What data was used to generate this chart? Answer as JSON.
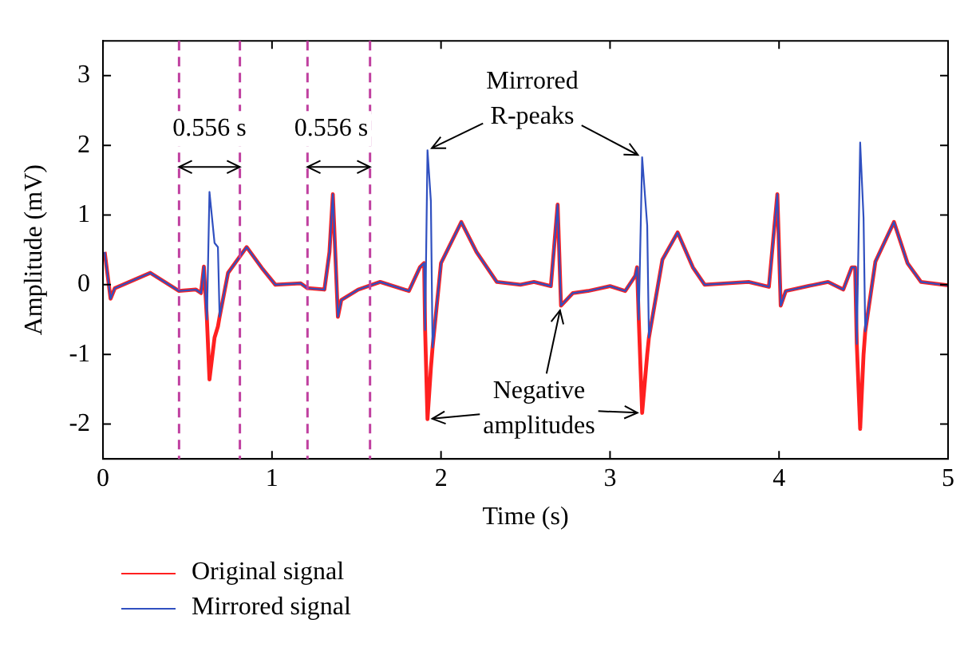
{
  "chart_data": {
    "type": "line",
    "xlabel": "Time (s)",
    "ylabel": "Amplitude (mV)",
    "x": [
      0.01,
      0.045,
      0.07,
      0.28,
      0.45,
      0.55,
      0.58,
      0.597,
      0.615,
      0.63,
      0.66,
      0.68,
      0.69,
      0.74,
      0.85,
      0.94,
      1.02,
      1.17,
      1.21,
      1.31,
      1.34,
      1.36,
      1.39,
      1.41,
      1.51,
      1.64,
      1.81,
      1.875,
      1.9,
      1.906,
      1.92,
      1.94,
      1.95,
      2.0,
      2.12,
      2.21,
      2.33,
      2.47,
      2.55,
      2.65,
      2.69,
      2.71,
      2.78,
      2.87,
      3.0,
      3.09,
      3.15,
      3.16,
      3.17,
      3.19,
      3.22,
      3.23,
      3.31,
      3.4,
      3.49,
      3.56,
      3.82,
      3.94,
      3.99,
      4.01,
      4.04,
      4.17,
      4.29,
      4.38,
      4.43,
      4.45,
      4.46,
      4.48,
      4.5,
      4.51,
      4.57,
      4.68,
      4.76,
      4.84,
      5.0
    ],
    "series": [
      {
        "name": "Original signal",
        "color": "#ff2020",
        "values": [
          0.47,
          -0.2,
          -0.05,
          0.17,
          -0.09,
          -0.07,
          -0.12,
          0.26,
          -0.5,
          -1.36,
          -0.76,
          -0.6,
          -0.46,
          0.17,
          0.54,
          0.24,
          0.0,
          0.02,
          -0.05,
          -0.07,
          0.47,
          1.3,
          -0.46,
          -0.22,
          -0.07,
          0.04,
          -0.09,
          0.25,
          0.31,
          -0.65,
          -1.93,
          -1.2,
          -0.9,
          0.31,
          0.9,
          0.47,
          0.04,
          0.0,
          0.04,
          -0.02,
          1.15,
          -0.3,
          -0.12,
          -0.09,
          -0.02,
          -0.09,
          0.13,
          0.25,
          -0.5,
          -1.84,
          -1.0,
          -0.76,
          0.36,
          0.75,
          0.25,
          0.0,
          0.04,
          -0.03,
          1.3,
          -0.3,
          -0.09,
          -0.02,
          0.04,
          -0.07,
          0.25,
          0.25,
          -0.85,
          -2.07,
          -1.0,
          -0.67,
          0.33,
          0.9,
          0.31,
          0.04,
          -0.01
        ]
      },
      {
        "name": "Mirrored signal",
        "color": "#3050c0",
        "values": [
          0.47,
          -0.2,
          -0.05,
          0.17,
          -0.09,
          -0.07,
          -0.12,
          0.26,
          -0.5,
          1.33,
          0.6,
          0.54,
          -0.46,
          0.17,
          0.54,
          0.24,
          0.0,
          0.02,
          -0.05,
          -0.07,
          0.47,
          1.3,
          -0.46,
          -0.22,
          -0.07,
          0.04,
          -0.09,
          0.25,
          0.31,
          -0.65,
          1.93,
          1.2,
          -0.9,
          0.31,
          0.9,
          0.47,
          0.04,
          0.0,
          0.04,
          -0.02,
          1.15,
          -0.3,
          -0.12,
          -0.09,
          -0.02,
          -0.09,
          0.13,
          0.25,
          -0.5,
          1.83,
          0.85,
          -0.76,
          0.36,
          0.75,
          0.25,
          0.0,
          0.04,
          -0.03,
          1.3,
          -0.3,
          -0.09,
          -0.02,
          0.04,
          -0.07,
          0.25,
          0.25,
          -0.85,
          2.04,
          0.96,
          -0.67,
          0.33,
          0.9,
          0.31,
          0.04,
          -0.01
        ]
      }
    ],
    "xlim": [
      0,
      5
    ],
    "xticks": [
      0,
      1,
      2,
      3,
      4,
      5
    ],
    "ylim": [
      -2.5,
      3.5
    ],
    "yticks": [
      -2,
      -1,
      0,
      1,
      2,
      3
    ],
    "grid": false,
    "legend": "bottom",
    "marker": "none",
    "line_style": "solid",
    "ref_lines": [
      {
        "axis": "x",
        "value": 0.45,
        "color": "#c040a0",
        "line_style": "dashed"
      },
      {
        "axis": "x",
        "value": 0.81,
        "color": "#c040a0",
        "line_style": "dashed"
      },
      {
        "axis": "x",
        "value": 1.21,
        "color": "#c040a0",
        "line_style": "dashed"
      },
      {
        "axis": "x",
        "value": 1.58,
        "color": "#c040a0",
        "line_style": "dashed"
      }
    ],
    "annotations": [
      "0.556 s",
      "0.556 s",
      {
        "text": "Mirrored\nR-peaks",
        "x": 1.92,
        "y": 1.93
      },
      {
        "text": "Negative\namplitudes",
        "x": 1.92,
        "y": -1.93
      }
    ]
  }
}
